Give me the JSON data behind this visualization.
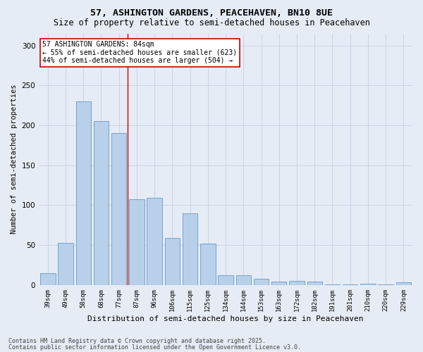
{
  "title": "57, ASHINGTON GARDENS, PEACEHAVEN, BN10 8UE",
  "subtitle": "Size of property relative to semi-detached houses in Peacehaven",
  "xlabel": "Distribution of semi-detached houses by size in Peacehaven",
  "ylabel": "Number of semi-detached properties",
  "categories": [
    "39sqm",
    "49sqm",
    "58sqm",
    "68sqm",
    "77sqm",
    "87sqm",
    "96sqm",
    "106sqm",
    "115sqm",
    "125sqm",
    "134sqm",
    "144sqm",
    "153sqm",
    "163sqm",
    "172sqm",
    "182sqm",
    "191sqm",
    "201sqm",
    "210sqm",
    "220sqm",
    "229sqm"
  ],
  "values": [
    15,
    53,
    230,
    205,
    190,
    107,
    109,
    59,
    90,
    52,
    12,
    12,
    8,
    4,
    5,
    4,
    1,
    1,
    2,
    1,
    3
  ],
  "bar_color": "#b8d0ea",
  "bar_edge_color": "#6699cc",
  "vline_x": 4.5,
  "annotation_title": "57 ASHINGTON GARDENS: 84sqm",
  "annotation_line2": "← 55% of semi-detached houses are smaller (623)",
  "annotation_line3": "44% of semi-detached houses are larger (504) →",
  "annotation_box_color": "#ffffff",
  "annotation_border_color": "#cc0000",
  "vline_color": "#cc0000",
  "footnote1": "Contains HM Land Registry data © Crown copyright and database right 2025.",
  "footnote2": "Contains public sector information licensed under the Open Government Licence v3.0.",
  "title_fontsize": 9.5,
  "subtitle_fontsize": 8.5,
  "ylabel_fontsize": 7.5,
  "xlabel_fontsize": 8,
  "tick_fontsize": 6.5,
  "annotation_fontsize": 7,
  "footnote_fontsize": 6,
  "ylim": [
    0,
    315
  ],
  "yticks": [
    0,
    50,
    100,
    150,
    200,
    250,
    300
  ],
  "grid_color": "#c8d4e8",
  "bg_color": "#e6ecf5",
  "fig_width": 6.0,
  "fig_height": 5.0,
  "fig_dpi": 100
}
